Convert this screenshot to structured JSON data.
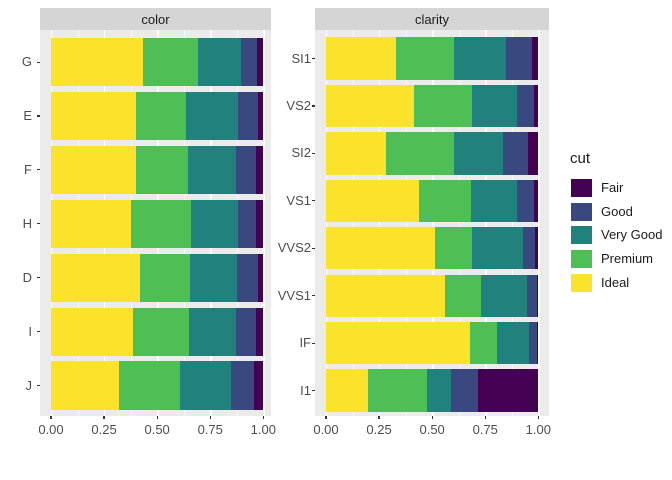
{
  "figure": {
    "background": "#ffffff",
    "panel_background": "#ebebeb",
    "strip_background": "#d5d5d5",
    "gridline_color": "#ffffff",
    "axis_text_color": "#4d4d4d",
    "tick_color": "#333333"
  },
  "colors": {
    "Fair": "#440154",
    "Good": "#39497f",
    "Very Good": "#21827d",
    "Premium": "#4fbe54",
    "Ideal": "#fce32b"
  },
  "legend": {
    "title": "cut",
    "entries": [
      "Fair",
      "Good",
      "Very Good",
      "Premium",
      "Ideal"
    ],
    "position": "right"
  },
  "x_axis": {
    "tick_labels": [
      "0.00",
      "0.25",
      "0.50",
      "0.75",
      "1.00"
    ],
    "tick_values": [
      0,
      0.25,
      0.5,
      0.75,
      1
    ],
    "minor_values": [
      0.125,
      0.375,
      0.625,
      0.875
    ]
  },
  "chart_data": [
    {
      "type": "bar",
      "orientation": "horizontal",
      "stacked": true,
      "normalized": "proportion fill of cut within each category",
      "title": "color",
      "xlabel": "",
      "ylabel": "",
      "xlim": [
        0,
        1
      ],
      "grid": "white major and minor vertical gridlines on grey panel",
      "categories": [
        "G",
        "E",
        "F",
        "H",
        "D",
        "I",
        "J"
      ],
      "stack_order_left_to_right": [
        "Ideal",
        "Premium",
        "Very Good",
        "Good",
        "Fair"
      ],
      "series": [
        {
          "name": "Ideal",
          "values": [
            0.4325,
            0.3984,
            0.401,
            0.3751,
            0.4183,
            0.386,
            0.3191
          ]
        },
        {
          "name": "Premium",
          "values": [
            0.2589,
            0.2385,
            0.2443,
            0.2842,
            0.2366,
            0.2634,
            0.2877
          ]
        },
        {
          "name": "Very Good",
          "values": [
            0.2036,
            0.245,
            0.2268,
            0.2197,
            0.2233,
            0.2221,
            0.2414
          ]
        },
        {
          "name": "Good",
          "values": [
            0.0771,
            0.0952,
            0.0953,
            0.0845,
            0.0977,
            0.0963,
            0.1093
          ]
        },
        {
          "name": "Fair",
          "values": [
            0.0278,
            0.0229,
            0.0327,
            0.0365,
            0.0241,
            0.0323,
            0.0424
          ]
        }
      ]
    },
    {
      "type": "bar",
      "orientation": "horizontal",
      "stacked": true,
      "normalized": "proportion fill of cut within each category",
      "title": "clarity",
      "xlabel": "",
      "ylabel": "",
      "xlim": [
        0,
        1
      ],
      "grid": "white major and minor vertical gridlines on grey panel",
      "categories": [
        "SI1",
        "VS2",
        "SI2",
        "VS1",
        "VVS2",
        "VVS1",
        "IF",
        "I1"
      ],
      "stack_order_left_to_right": [
        "Ideal",
        "Premium",
        "Very Good",
        "Good",
        "Fair"
      ],
      "series": [
        {
          "name": "Ideal",
          "values": [
            0.3277,
            0.4137,
            0.2826,
            0.4392,
            0.5144,
            0.5601,
            0.6771,
            0.197
          ]
        },
        {
          "name": "Premium",
          "values": [
            0.2736,
            0.2739,
            0.3208,
            0.2434,
            0.1717,
            0.1685,
            0.1285,
            0.2767
          ]
        },
        {
          "name": "Very Good",
          "values": [
            0.248,
            0.2114,
            0.2284,
            0.2172,
            0.2438,
            0.2159,
            0.1497,
            0.1134
          ]
        },
        {
          "name": "Good",
          "values": [
            0.1194,
            0.0798,
            0.1176,
            0.0793,
            0.0565,
            0.0509,
            0.0397,
            0.1296
          ]
        },
        {
          "name": "Fair",
          "values": [
            0.0312,
            0.0213,
            0.0507,
            0.0208,
            0.0136,
            0.0047,
            0.005,
            0.2834
          ]
        }
      ]
    }
  ]
}
